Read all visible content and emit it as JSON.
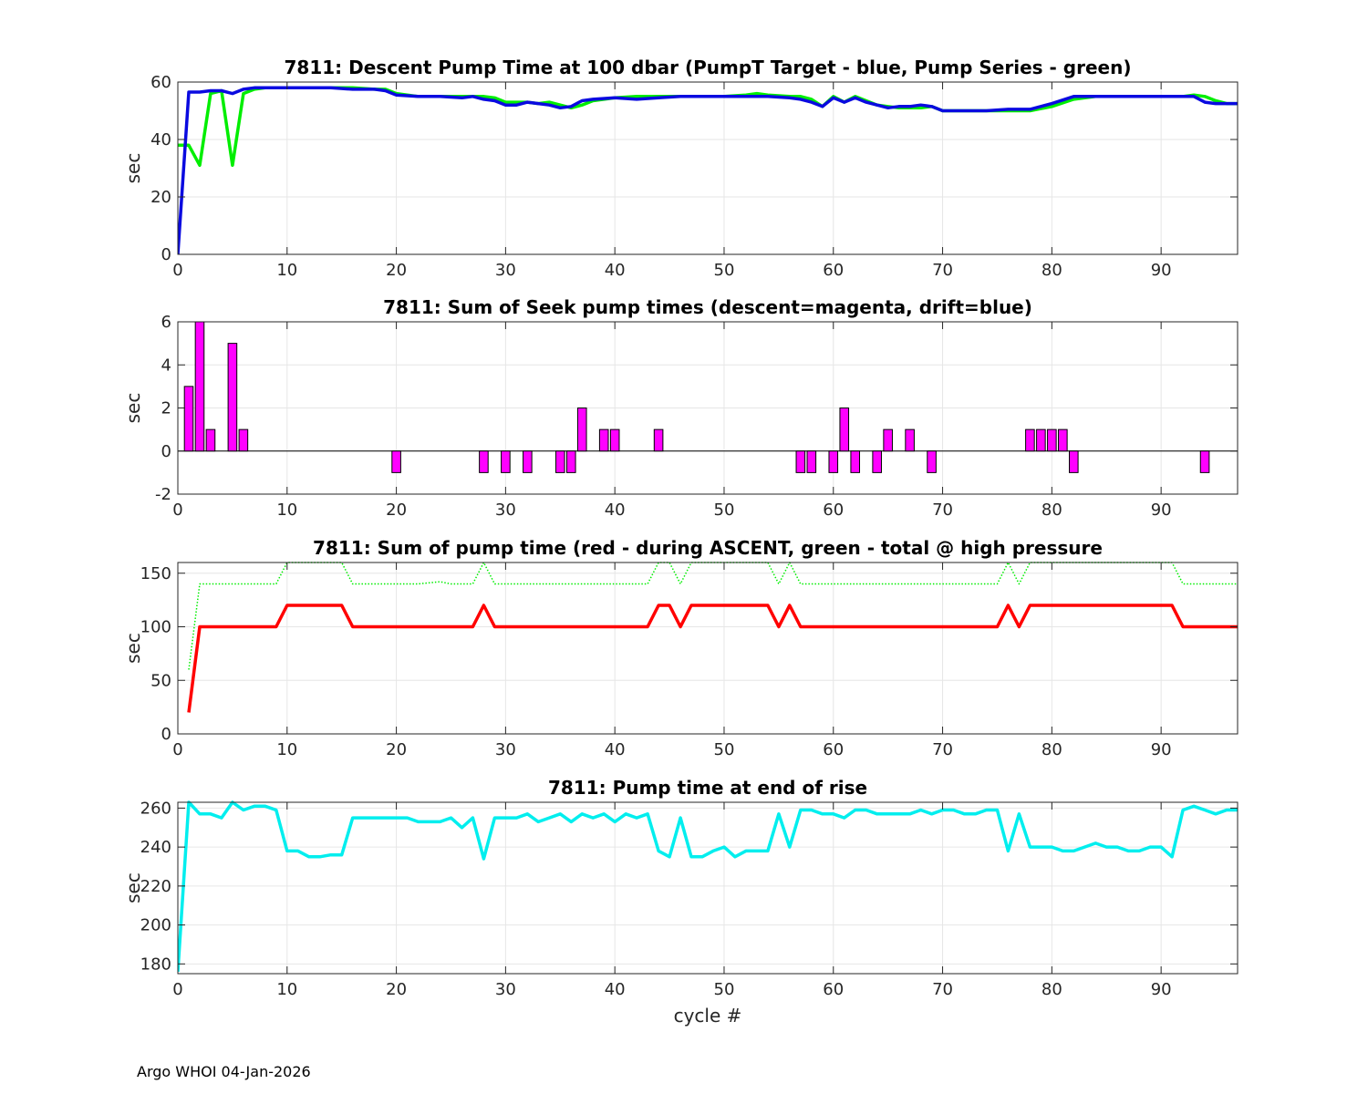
{
  "footer": "Argo WHOI 04-Jan-2026",
  "colors": {
    "green": "#00ee00",
    "blue": "#0a0ae0",
    "magenta": "#ff00ff",
    "red": "#ff0000",
    "cyan": "#00eeee",
    "grid": "#e6e6e6"
  },
  "chart_data": [
    {
      "type": "line",
      "title": "7811: Descent Pump Time at 100 dbar (PumpT Target - blue, Pump Series - green)",
      "xlabel": "",
      "ylabel": "sec",
      "xlim": [
        0,
        97
      ],
      "ylim": [
        0,
        60
      ],
      "xticks": [
        0,
        10,
        20,
        30,
        40,
        50,
        60,
        70,
        80,
        90
      ],
      "yticks": [
        0,
        20,
        40,
        60
      ],
      "series": [
        {
          "name": "Pump Series",
          "color": "green",
          "style": "solid",
          "x": [
            0,
            1,
            2,
            3,
            4,
            5,
            6,
            7,
            8,
            10,
            12,
            14,
            16,
            18,
            19,
            20,
            22,
            24,
            26,
            27,
            28,
            29,
            30,
            31,
            32,
            33,
            34,
            35,
            36,
            37,
            38,
            40,
            42,
            44,
            46,
            48,
            50,
            52,
            53,
            54,
            56,
            57,
            58,
            59,
            60,
            61,
            62,
            63,
            64,
            65,
            66,
            67,
            68,
            69,
            70,
            72,
            74,
            76,
            78,
            80,
            82,
            84,
            86,
            88,
            90,
            92,
            93,
            94,
            95,
            96,
            97
          ],
          "y": [
            38,
            38,
            31,
            56,
            57,
            31,
            56,
            57.5,
            58,
            58,
            58,
            58,
            58,
            57.5,
            57.5,
            56,
            55,
            55,
            55,
            55,
            55,
            54.5,
            53,
            53,
            53,
            52.5,
            53,
            52,
            51,
            52,
            53.5,
            54.5,
            55,
            55,
            55,
            55,
            55,
            55.5,
            56,
            55.5,
            55,
            55,
            54,
            51.5,
            55,
            53,
            55,
            53.5,
            52,
            51.5,
            51,
            51,
            51,
            51.5,
            50,
            50,
            50,
            50,
            50,
            51.5,
            54,
            55,
            55,
            55,
            55,
            55,
            55.5,
            55,
            53.5,
            52.5,
            52.5
          ]
        },
        {
          "name": "PumpT Target",
          "color": "blue",
          "style": "solid",
          "x": [
            0,
            1,
            2,
            3,
            4,
            5,
            6,
            7,
            8,
            10,
            12,
            14,
            16,
            18,
            19,
            20,
            22,
            24,
            26,
            27,
            28,
            29,
            30,
            31,
            32,
            33,
            34,
            35,
            36,
            37,
            38,
            40,
            42,
            44,
            46,
            48,
            50,
            52,
            54,
            56,
            57,
            58,
            59,
            60,
            61,
            62,
            63,
            64,
            65,
            66,
            67,
            68,
            69,
            70,
            72,
            74,
            76,
            78,
            80,
            82,
            84,
            86,
            88,
            90,
            92,
            93,
            94,
            95,
            96,
            97
          ],
          "y": [
            0,
            56.5,
            56.5,
            57,
            57,
            56,
            57.5,
            58,
            58,
            58,
            58,
            58,
            57.5,
            57.5,
            57,
            55.5,
            55,
            55,
            54.5,
            55,
            54,
            53.5,
            52,
            52,
            53,
            52.5,
            52,
            51,
            51.5,
            53.5,
            54,
            54.5,
            54,
            54.5,
            55,
            55,
            55,
            55,
            55,
            54.5,
            54,
            53,
            51.5,
            54.5,
            53,
            54.5,
            53,
            52,
            51,
            51.5,
            51.5,
            52,
            51.5,
            50,
            50,
            50,
            50.5,
            50.5,
            52.5,
            55,
            55,
            55,
            55,
            55,
            55,
            55,
            53,
            52.5,
            52.5,
            52.5
          ]
        }
      ]
    },
    {
      "type": "bar",
      "title": "7811: Sum of Seek pump times (descent=magenta, drift=blue)",
      "xlabel": "",
      "ylabel": "sec",
      "xlim": [
        0,
        97
      ],
      "ylim": [
        -2,
        6
      ],
      "xticks": [
        0,
        10,
        20,
        30,
        40,
        50,
        60,
        70,
        80,
        90
      ],
      "yticks": [
        -2,
        0,
        2,
        4,
        6
      ],
      "series": [
        {
          "name": "descent",
          "color": "magenta",
          "x": [
            1,
            2,
            3,
            5,
            6,
            20,
            28,
            30,
            32,
            35,
            36,
            37,
            39,
            40,
            44,
            57,
            58,
            60,
            61,
            62,
            64,
            65,
            67,
            69,
            78,
            79,
            80,
            81,
            82,
            94
          ],
          "y": [
            3,
            6,
            1,
            5,
            1,
            -1,
            -1,
            -1,
            -1,
            -1,
            -1,
            2,
            1,
            1,
            1,
            -1,
            -1,
            -1,
            2,
            -1,
            -1,
            1,
            1,
            -1,
            1,
            1,
            1,
            1,
            -1,
            -1
          ]
        }
      ]
    },
    {
      "type": "line",
      "title": "7811: Sum of pump time (red - during ASCENT, green - total @ high pressure",
      "xlabel": "",
      "ylabel": "sec",
      "xlim": [
        0,
        97
      ],
      "ylim": [
        0,
        160
      ],
      "xticks": [
        0,
        10,
        20,
        30,
        40,
        50,
        60,
        70,
        80,
        90
      ],
      "yticks": [
        0,
        50,
        100,
        150
      ],
      "series": [
        {
          "name": "during ASCENT",
          "color": "red",
          "style": "solid",
          "x": [
            1,
            2,
            9,
            10,
            15,
            16,
            27,
            28,
            29,
            43,
            44,
            45,
            46,
            47,
            53,
            54,
            55,
            56,
            57,
            75,
            76,
            77,
            78,
            91,
            92,
            97
          ],
          "y": [
            20,
            100,
            100,
            120,
            120,
            100,
            100,
            120,
            100,
            100,
            120,
            120,
            100,
            120,
            120,
            120,
            100,
            120,
            100,
            100,
            120,
            100,
            120,
            120,
            100,
            100
          ]
        },
        {
          "name": "total @ high pressure",
          "color": "green",
          "style": "dotted",
          "x": [
            1,
            2,
            9,
            10,
            15,
            16,
            22,
            23,
            24,
            25,
            27,
            28,
            29,
            43,
            44,
            45,
            46,
            47,
            53,
            54,
            55,
            56,
            57,
            75,
            76,
            77,
            78,
            91,
            92,
            97
          ],
          "y": [
            60,
            140,
            140,
            160,
            160,
            140,
            140,
            141,
            142,
            140,
            140,
            160,
            140,
            140,
            160,
            160,
            140,
            160,
            160,
            160,
            140,
            160,
            140,
            140,
            160,
            140,
            160,
            160,
            140,
            140
          ]
        }
      ]
    },
    {
      "type": "line",
      "title": "7811: Pump time at end of rise",
      "xlabel": "cycle #",
      "ylabel": "sec",
      "xlim": [
        0,
        97
      ],
      "ylim": [
        175,
        263
      ],
      "xticks": [
        0,
        10,
        20,
        30,
        40,
        50,
        60,
        70,
        80,
        90
      ],
      "yticks": [
        180,
        200,
        220,
        240,
        260
      ],
      "series": [
        {
          "name": "pump time at end of rise",
          "color": "cyan",
          "style": "solid",
          "x": [
            0,
            1,
            2,
            3,
            4,
            5,
            6,
            7,
            8,
            9,
            10,
            11,
            12,
            13,
            14,
            15,
            16,
            17,
            18,
            19,
            20,
            21,
            22,
            23,
            24,
            25,
            26,
            27,
            28,
            29,
            30,
            31,
            32,
            33,
            34,
            35,
            36,
            37,
            38,
            39,
            40,
            41,
            42,
            43,
            44,
            45,
            46,
            47,
            48,
            49,
            50,
            51,
            52,
            53,
            54,
            55,
            56,
            57,
            58,
            59,
            60,
            61,
            62,
            63,
            64,
            65,
            66,
            67,
            68,
            69,
            70,
            71,
            72,
            73,
            74,
            75,
            76,
            77,
            78,
            79,
            80,
            81,
            82,
            83,
            84,
            85,
            86,
            87,
            88,
            89,
            90,
            91,
            92,
            93,
            94,
            95,
            96,
            97
          ],
          "y": [
            176,
            263,
            257,
            257,
            255,
            263,
            259,
            261,
            261,
            259,
            238,
            238,
            235,
            235,
            236,
            236,
            255,
            255,
            255,
            255,
            255,
            255,
            253,
            253,
            253,
            255,
            250,
            255,
            234,
            255,
            255,
            255,
            257,
            253,
            255,
            257,
            253,
            257,
            255,
            257,
            253,
            257,
            255,
            257,
            238,
            235,
            255,
            235,
            235,
            238,
            240,
            235,
            238,
            238,
            238,
            257,
            240,
            259,
            259,
            257,
            257,
            255,
            259,
            259,
            257,
            257,
            257,
            257,
            259,
            257,
            259,
            259,
            257,
            257,
            259,
            259,
            238,
            257,
            240,
            240,
            240,
            238,
            238,
            240,
            242,
            240,
            240,
            238,
            238,
            240,
            240,
            235,
            259,
            261,
            259,
            257,
            259,
            259
          ]
        }
      ]
    }
  ]
}
